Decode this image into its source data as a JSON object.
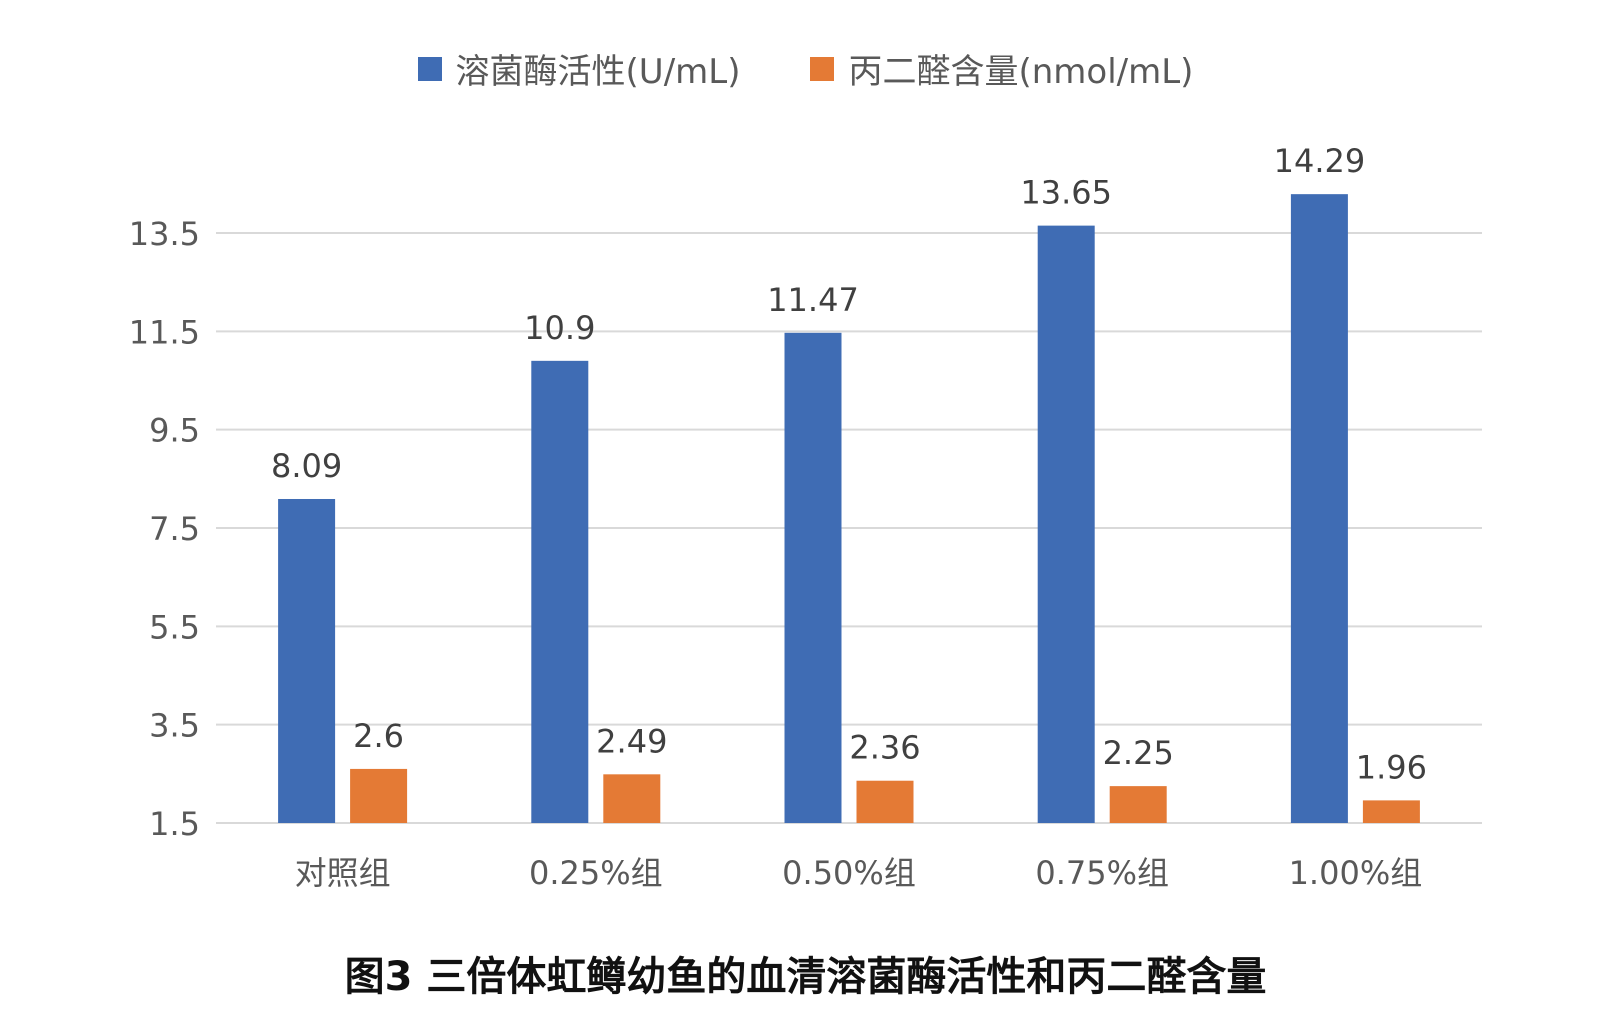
{
  "chart_data": {
    "type": "bar",
    "categories": [
      "对照组",
      "0.25%组",
      "0.50%组",
      "0.75%组",
      "1.00%组"
    ],
    "series": [
      {
        "name": "溶菌酶活性(U/mL)",
        "color": "#3F6CB4",
        "values": [
          8.09,
          10.9,
          11.47,
          13.65,
          14.29
        ]
      },
      {
        "name": "丙二醛含量(nmol/mL)",
        "color": "#E47A35",
        "values": [
          2.6,
          2.49,
          2.36,
          2.25,
          1.96
        ]
      }
    ],
    "data_labels": [
      [
        "8.09",
        "10.9",
        "11.47",
        "13.65",
        "14.29"
      ],
      [
        "2.6",
        "2.49",
        "2.36",
        "2.25",
        "1.96"
      ]
    ],
    "yticks": [
      "1.5",
      "3.5",
      "5.5",
      "7.5",
      "9.5",
      "11.5",
      "13.5"
    ],
    "ylim": [
      1.5,
      13.5
    ],
    "grid": true,
    "legend_position": "top-center",
    "caption": "图3 三倍体虹鳟幼鱼的血清溶菌酶活性和丙二醛含量"
  }
}
